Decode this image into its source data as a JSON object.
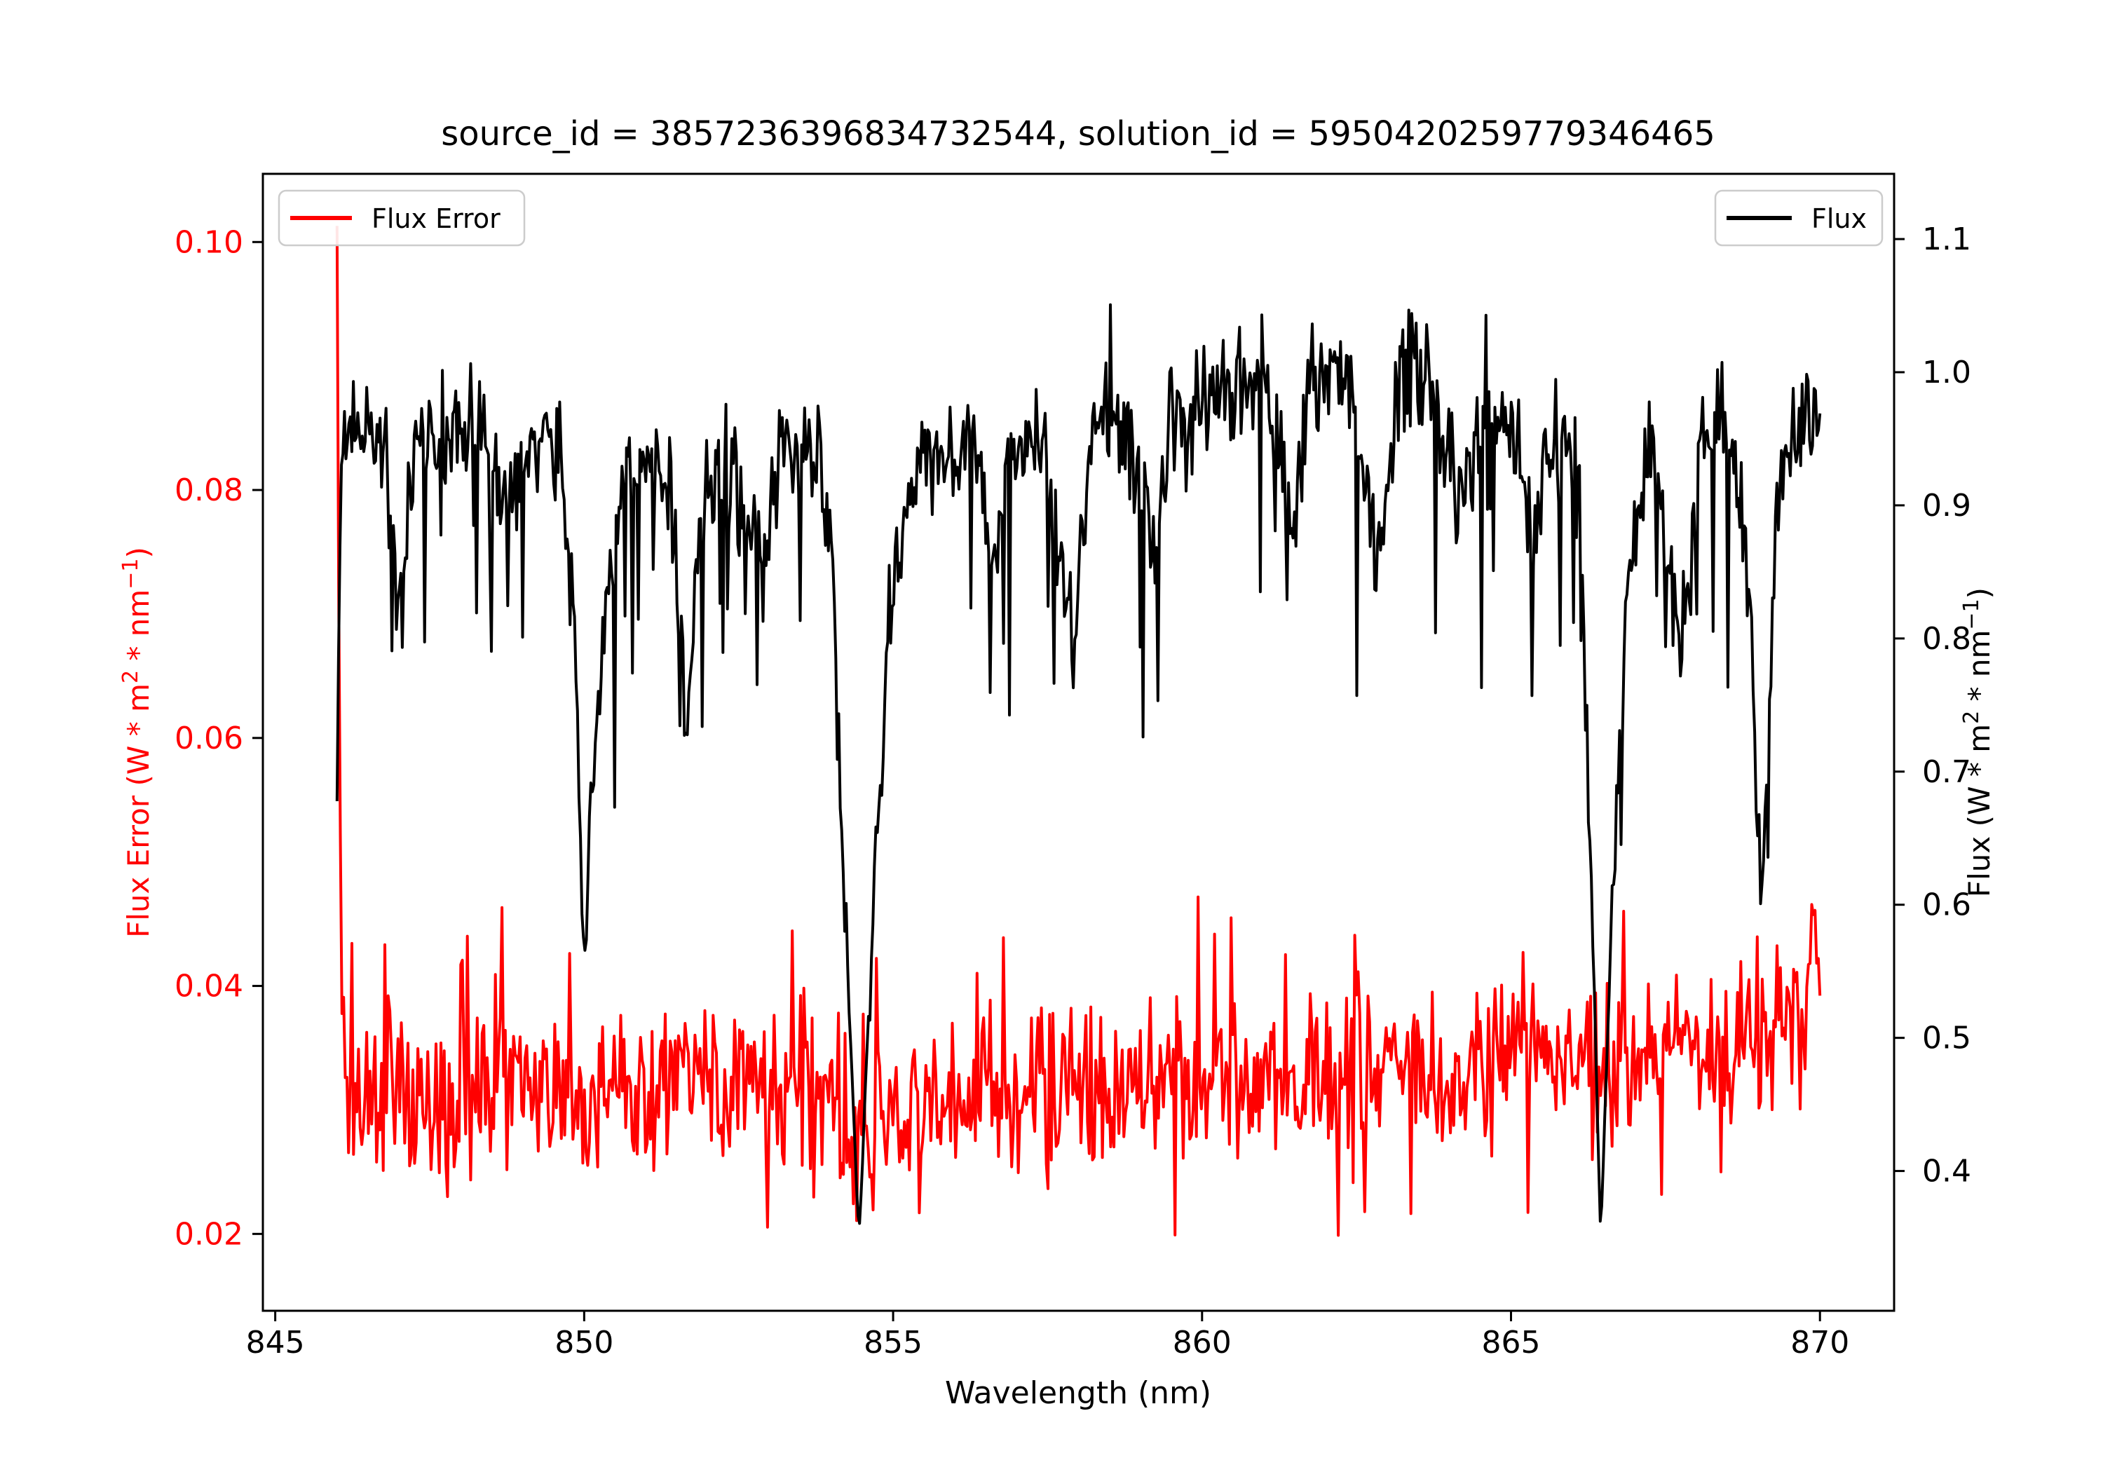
{
  "title": "source_id = 3857236396834732544, solution_id = 5950420259779346465",
  "colors": {
    "flux_error": "#ff0000",
    "flux": "#000000",
    "left_tick_label": "#ff0000",
    "text": "#000000",
    "legend_border": "#cccccc",
    "background": "#ffffff"
  },
  "chart_data": {
    "type": "line",
    "title": "source_id = 3857236396834732544, solution_id = 5950420259779346465",
    "xlabel": "Wavelength (nm)",
    "ylabel_left": "Flux Error (W * m^2 * nm^-1)",
    "ylabel_right": "Flux (W * m^2 * nm^-1)",
    "ylabel_left_parts": [
      {
        "t": "Flux Error (W * m"
      },
      {
        "t": "2",
        "sup": true
      },
      {
        "t": " * nm"
      },
      {
        "t": "−1",
        "sup": true
      },
      {
        "t": ")"
      }
    ],
    "ylabel_right_parts": [
      {
        "t": "Flux (W * m"
      },
      {
        "t": "2",
        "sup": true
      },
      {
        "t": " * nm"
      },
      {
        "t": "−1",
        "sup": true
      },
      {
        "t": ")"
      }
    ],
    "grid": false,
    "xlim": [
      844.8,
      871.2
    ],
    "ylim_left": [
      0.0138,
      0.1055
    ],
    "ylim_right": [
      0.295,
      1.149
    ],
    "xticks": [
      "845",
      "850",
      "855",
      "860",
      "865",
      "870"
    ],
    "yticks_left": [
      "0.02",
      "0.04",
      "0.06",
      "0.08",
      "0.10"
    ],
    "yticks_right": [
      "0.4",
      "0.5",
      "0.6",
      "0.7",
      "0.8",
      "0.9",
      "1.0",
      "1.1"
    ],
    "legend": [
      {
        "label": "Flux Error",
        "color": "#ff0000",
        "position": "upper left"
      },
      {
        "label": "Flux",
        "color": "#000000",
        "position": "upper right"
      }
    ],
    "series": [
      {
        "name": "Flux Error",
        "color": "#ff0000",
        "axis": "left",
        "x_start": 846.0,
        "x_end": 870.0,
        "n_points": 900,
        "noise_amp": 0.0075,
        "anchors": [
          [
            846.0,
            0.1013
          ],
          [
            846.04,
            0.058
          ],
          [
            846.1,
            0.032
          ],
          [
            846.5,
            0.0315
          ],
          [
            848.0,
            0.0315
          ],
          [
            850.0,
            0.0318
          ],
          [
            852.0,
            0.0317
          ],
          [
            854.0,
            0.03
          ],
          [
            854.45,
            0.0255
          ],
          [
            855.0,
            0.03
          ],
          [
            856.0,
            0.0318
          ],
          [
            858.0,
            0.032
          ],
          [
            860.0,
            0.0325
          ],
          [
            862.0,
            0.033
          ],
          [
            864.0,
            0.0335
          ],
          [
            866.0,
            0.034
          ],
          [
            866.45,
            0.0315
          ],
          [
            867.0,
            0.0345
          ],
          [
            868.0,
            0.035
          ],
          [
            869.0,
            0.036
          ],
          [
            869.7,
            0.039
          ],
          [
            870.0,
            0.0425
          ]
        ]
      },
      {
        "name": "Flux",
        "color": "#000000",
        "axis": "right",
        "x_start": 846.0,
        "x_end": 870.0,
        "n_points": 1000,
        "noise_amp": 0.055,
        "anchors": [
          [
            846.0,
            0.68
          ],
          [
            846.06,
            0.94
          ],
          [
            846.4,
            0.955
          ],
          [
            846.75,
            0.95
          ],
          [
            847.05,
            0.8
          ],
          [
            847.2,
            0.93
          ],
          [
            847.6,
            0.96
          ],
          [
            848.2,
            0.965
          ],
          [
            848.85,
            0.875
          ],
          [
            849.05,
            0.95
          ],
          [
            849.6,
            0.955
          ],
          [
            849.85,
            0.8
          ],
          [
            850.0,
            0.555
          ],
          [
            850.15,
            0.72
          ],
          [
            850.35,
            0.82
          ],
          [
            850.6,
            0.92
          ],
          [
            851.0,
            0.95
          ],
          [
            851.45,
            0.9
          ],
          [
            851.65,
            0.735
          ],
          [
            851.9,
            0.9
          ],
          [
            852.3,
            0.945
          ],
          [
            852.9,
            0.845
          ],
          [
            853.15,
            0.945
          ],
          [
            853.7,
            0.95
          ],
          [
            854.0,
            0.87
          ],
          [
            854.2,
            0.62
          ],
          [
            854.45,
            0.345
          ],
          [
            854.7,
            0.63
          ],
          [
            854.95,
            0.82
          ],
          [
            855.3,
            0.92
          ],
          [
            855.8,
            0.95
          ],
          [
            856.3,
            0.945
          ],
          [
            856.6,
            0.86
          ],
          [
            856.9,
            0.945
          ],
          [
            857.4,
            0.955
          ],
          [
            857.9,
            0.8
          ],
          [
            858.2,
            0.95
          ],
          [
            858.7,
            0.965
          ],
          [
            859.2,
            0.875
          ],
          [
            859.5,
            0.97
          ],
          [
            860.0,
            0.975
          ],
          [
            860.5,
            0.99
          ],
          [
            861.0,
            1.0
          ],
          [
            861.45,
            0.875
          ],
          [
            861.8,
            1.0
          ],
          [
            862.3,
            1.01
          ],
          [
            862.85,
            0.855
          ],
          [
            863.2,
            1.0
          ],
          [
            863.7,
            0.99
          ],
          [
            864.2,
            0.9
          ],
          [
            864.6,
            0.975
          ],
          [
            865.0,
            0.97
          ],
          [
            865.3,
            0.875
          ],
          [
            865.7,
            0.955
          ],
          [
            866.1,
            0.92
          ],
          [
            866.3,
            0.62
          ],
          [
            866.45,
            0.35
          ],
          [
            866.65,
            0.62
          ],
          [
            866.9,
            0.85
          ],
          [
            867.3,
            0.945
          ],
          [
            867.75,
            0.8
          ],
          [
            868.1,
            0.95
          ],
          [
            868.5,
            0.96
          ],
          [
            868.8,
            0.89
          ],
          [
            869.05,
            0.605
          ],
          [
            869.3,
            0.9
          ],
          [
            869.6,
            0.965
          ],
          [
            870.0,
            0.975
          ]
        ]
      }
    ]
  }
}
